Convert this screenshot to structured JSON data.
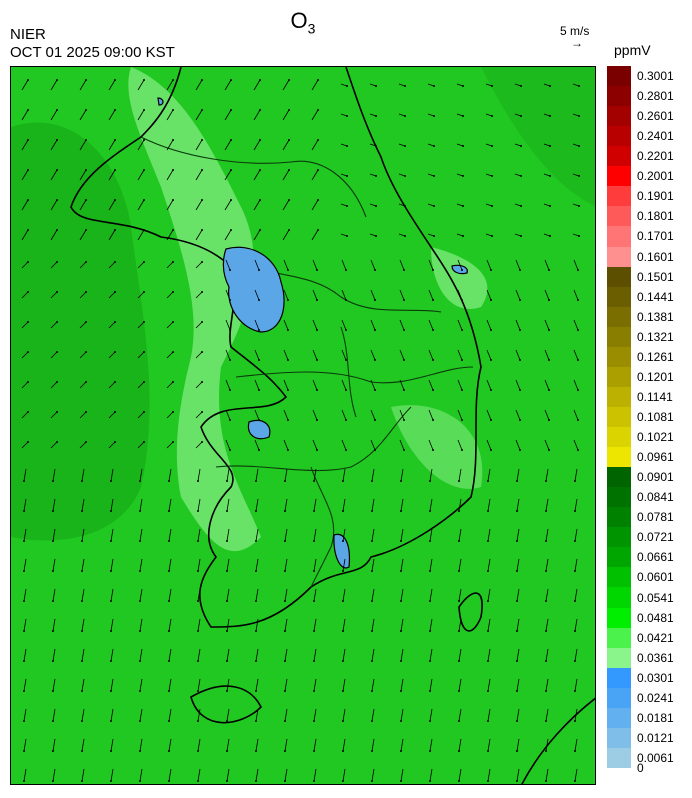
{
  "header": {
    "title_main": "O",
    "title_sub": "3",
    "agency": "NIER",
    "timestamp": "OCT 01 2025 09:00 KST",
    "wind_reference": "5 m/s",
    "wind_reference_arrow": "→",
    "unit": "ppmV"
  },
  "colorbar": {
    "levels": [
      {
        "label": "0.3001",
        "color": "#7a0000"
      },
      {
        "label": "0.2801",
        "color": "#8c0000"
      },
      {
        "label": "0.2601",
        "color": "#a30000"
      },
      {
        "label": "0.2401",
        "color": "#b80000"
      },
      {
        "label": "0.2201",
        "color": "#d10000"
      },
      {
        "label": "0.2001",
        "color": "#ff0000"
      },
      {
        "label": "0.1901",
        "color": "#ff3c3c"
      },
      {
        "label": "0.1801",
        "color": "#ff5a5a"
      },
      {
        "label": "0.1701",
        "color": "#ff7474"
      },
      {
        "label": "0.1601",
        "color": "#ff9090"
      },
      {
        "label": "0.1501",
        "color": "#5c4f00"
      },
      {
        "label": "0.1441",
        "color": "#6b5e00"
      },
      {
        "label": "0.1381",
        "color": "#7a6e00"
      },
      {
        "label": "0.1321",
        "color": "#8a7e00"
      },
      {
        "label": "0.1261",
        "color": "#9a8e00"
      },
      {
        "label": "0.1201",
        "color": "#ab9f00"
      },
      {
        "label": "0.1141",
        "color": "#bcb000"
      },
      {
        "label": "0.1081",
        "color": "#ccc200"
      },
      {
        "label": "0.1021",
        "color": "#dcd400"
      },
      {
        "label": "0.0961",
        "color": "#ece600"
      },
      {
        "label": "0.0901",
        "color": "#006400"
      },
      {
        "label": "0.0841",
        "color": "#007200"
      },
      {
        "label": "0.0781",
        "color": "#008200"
      },
      {
        "label": "0.0721",
        "color": "#009400"
      },
      {
        "label": "0.0661",
        "color": "#00a600"
      },
      {
        "label": "0.0601",
        "color": "#00c000"
      },
      {
        "label": "0.0541",
        "color": "#00d600"
      },
      {
        "label": "0.0481",
        "color": "#00ee00"
      },
      {
        "label": "0.0421",
        "color": "#4cf24c"
      },
      {
        "label": "0.0361",
        "color": "#8af58a"
      },
      {
        "label": "0.0301",
        "color": "#3399ff"
      },
      {
        "label": "0.0241",
        "color": "#4aa4f5"
      },
      {
        "label": "0.0181",
        "color": "#62b0f0"
      },
      {
        "label": "0.0121",
        "color": "#7ebee8"
      },
      {
        "label": "0.0061",
        "color": "#9ccde4"
      }
    ],
    "min_label": "0"
  },
  "map": {
    "background_color": "#22c822",
    "low_area_color": "#5aa6e6",
    "light_area_color": "#86ee86",
    "dark_area_color": "#10a010"
  }
}
